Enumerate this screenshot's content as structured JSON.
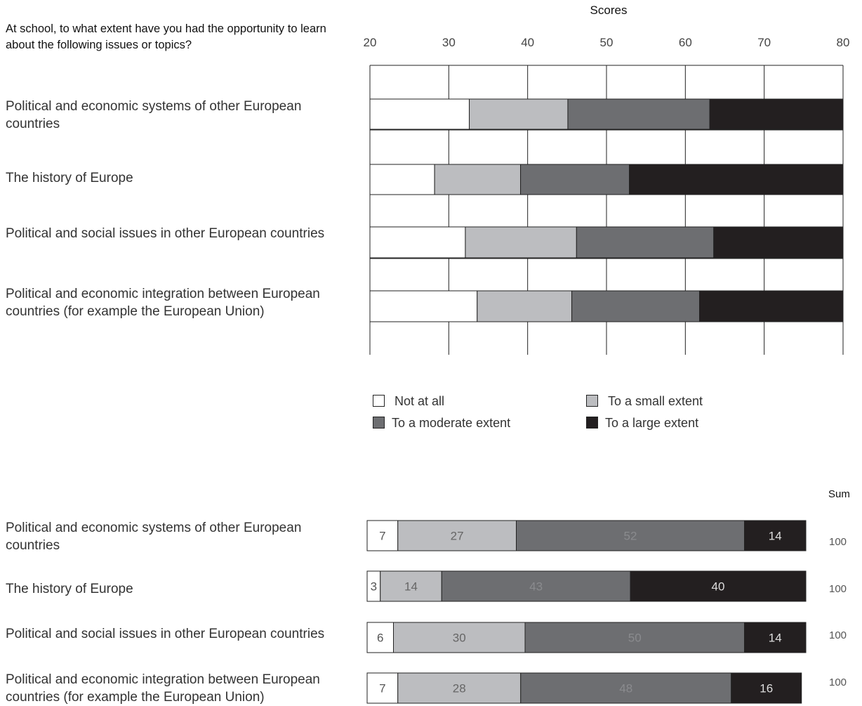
{
  "question": "At school, to what extent have you had the opportunity to learn about the following issues or topics?",
  "legend": [
    {
      "label": "Not at all",
      "color": "#ffffff"
    },
    {
      "label": "To a small extent",
      "color": "#bcbdc0"
    },
    {
      "label": "To a moderate extent",
      "color": "#6d6e71"
    },
    {
      "label": "To a large extent",
      "color": "#231f20"
    }
  ],
  "sum_header": "Sum",
  "chart_data": [
    {
      "type": "bar",
      "orientation": "horizontal",
      "stacked": true,
      "title": "Scores",
      "xlim": [
        20,
        80
      ],
      "xticks": [
        "20",
        "30",
        "40",
        "50",
        "60",
        "70",
        "80"
      ],
      "categories": [
        "Political and economic systems of other European countries",
        "The history of Europe",
        "Political and social issues in other European countries",
        "Political and economic integration between European countries (for example the European Union)"
      ],
      "series": [
        {
          "name": "Not at all",
          "color": "#ffffff",
          "start": [
            20,
            20,
            20,
            20
          ],
          "end": [
            32.6,
            28.2,
            32.1,
            33.6
          ]
        },
        {
          "name": "To a small extent",
          "color": "#bcbdc0",
          "start": [
            32.6,
            28.2,
            32.1,
            33.6
          ],
          "end": [
            45.1,
            39.1,
            46.2,
            45.6
          ]
        },
        {
          "name": "To a moderate extent",
          "color": "#6d6e71",
          "start": [
            45.1,
            39.1,
            46.2,
            45.6
          ],
          "end": [
            63.1,
            52.9,
            63.6,
            61.8
          ]
        },
        {
          "name": "To a large extent",
          "color": "#231f20",
          "start": [
            63.1,
            52.9,
            63.6,
            61.8
          ],
          "end": [
            80,
            80,
            80,
            80
          ]
        }
      ]
    },
    {
      "type": "bar",
      "orientation": "horizontal",
      "stacked": true,
      "unit": "percent",
      "categories": [
        "Political and economic systems of other European countries",
        "The history of Europe",
        "Political and social issues in other European countries",
        "Political and economic integration between European countries (for example the European Union)"
      ],
      "series": [
        {
          "name": "Not at all",
          "color": "#ffffff",
          "values": [
            7,
            3,
            6,
            7
          ]
        },
        {
          "name": "To a small extent",
          "color": "#bcbdc0",
          "values": [
            27,
            14,
            30,
            28
          ]
        },
        {
          "name": "To a moderate extent",
          "color": "#6d6e71",
          "values": [
            52,
            43,
            50,
            48
          ]
        },
        {
          "name": "To a large extent",
          "color": "#231f20",
          "values": [
            14,
            40,
            14,
            16
          ]
        }
      ],
      "sums": [
        "100",
        "100",
        "100",
        "100"
      ]
    }
  ]
}
